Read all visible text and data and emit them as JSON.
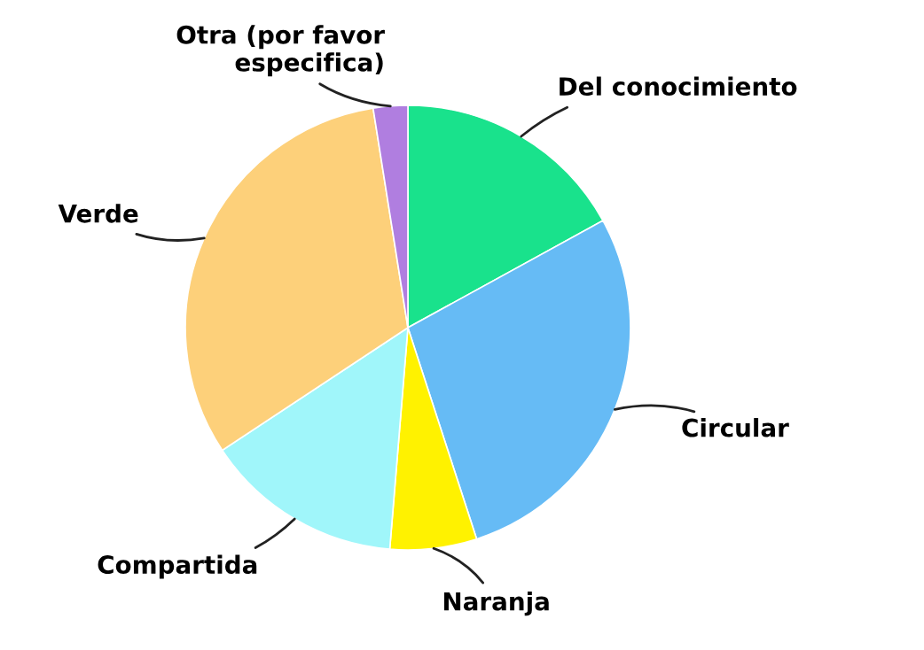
{
  "chart_data": {
    "type": "pie",
    "categories": [
      "Del conocimiento",
      "Circular",
      "Naranja",
      "Compartida",
      "Verde",
      "Otra (por favor\nespecifica)"
    ],
    "values": [
      17,
      28,
      6.3,
      14.4,
      31.8,
      2.5
    ],
    "colors": [
      "#19e28c",
      "#66bbf5",
      "#fff200",
      "#a0f6fa",
      "#fdd07a",
      "#b07ee0"
    ],
    "legend": false
  }
}
